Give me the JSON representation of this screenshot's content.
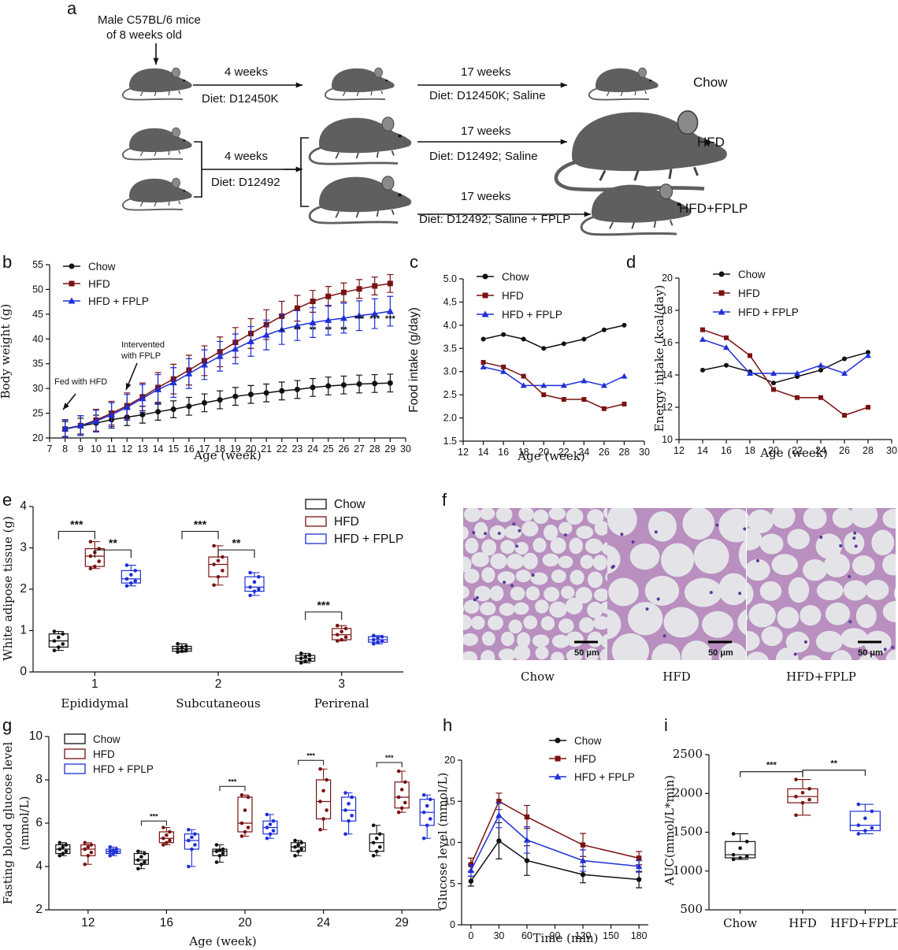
{
  "panels": {
    "a": "a",
    "b": "b",
    "c": "c",
    "d": "d",
    "e": "e",
    "f": "f",
    "g": "g",
    "h": "h",
    "i": "i"
  },
  "diagram": {
    "start": "Male C57BL/6 mice",
    "start2": "of 8 weeks old",
    "w4": "4 weeks",
    "diet_chow": "Diet: D12450K",
    "diet_hfd": "Diet: D12492",
    "w17": "17 weeks",
    "d_chow": "Diet: D12450K; Saline",
    "d_hfd": "Diet: D12492; Saline",
    "d_fplp": "Diet: D12492; Saline + FPLP",
    "g_chow": "Chow",
    "g_hfd": "HFD",
    "g_fplp": "HFD+FPLP"
  },
  "colors": {
    "chow": "#111111",
    "hfd": "#7a1212",
    "fplp": "#1f2fd6",
    "mouse": "#5f5f5f"
  },
  "chart_data": [
    {
      "id": "b",
      "type": "line",
      "ylabel": "Body weight (g)",
      "xlabel": "Age (week)",
      "xlim": [
        7,
        30
      ],
      "ylim": [
        20,
        55
      ],
      "xticks": [
        7,
        8,
        9,
        10,
        11,
        12,
        13,
        14,
        15,
        16,
        17,
        18,
        19,
        20,
        21,
        22,
        23,
        24,
        25,
        26,
        27,
        28,
        29,
        30
      ],
      "yticks": [
        20,
        25,
        30,
        35,
        40,
        45,
        50,
        55
      ],
      "x": [
        8,
        9,
        10,
        11,
        12,
        13,
        14,
        15,
        16,
        17,
        18,
        19,
        20,
        21,
        22,
        23,
        24,
        25,
        26,
        27,
        28,
        29
      ],
      "series": [
        {
          "name": "Chow",
          "color": "#111111",
          "marker": "circle",
          "values": [
            21.8,
            22.4,
            23.0,
            23.7,
            24.2,
            24.7,
            25.3,
            25.8,
            26.4,
            27.1,
            27.7,
            28.4,
            28.8,
            29.1,
            29.5,
            29.8,
            30.2,
            30.5,
            30.7,
            30.9,
            31.0,
            31.1
          ],
          "err": [
            1.5,
            1.6,
            1.6,
            1.7,
            1.7,
            1.7,
            1.7,
            1.7,
            1.8,
            1.8,
            1.8,
            1.8,
            1.8,
            1.8,
            1.8,
            1.8,
            1.8,
            1.8,
            1.8,
            1.8,
            1.8,
            1.8
          ]
        },
        {
          "name": "HFD",
          "color": "#7a1212",
          "marker": "square",
          "values": [
            21.8,
            22.5,
            23.6,
            25.0,
            26.5,
            28.3,
            30.2,
            31.9,
            33.7,
            35.6,
            37.4,
            39.3,
            41.1,
            42.9,
            44.6,
            46.2,
            47.6,
            48.6,
            49.4,
            50.1,
            50.7,
            51.2
          ],
          "err": [
            1.8,
            2.0,
            2.2,
            2.4,
            2.6,
            2.8,
            3.0,
            3.0,
            3.0,
            3.0,
            3.0,
            3.0,
            3.0,
            3.0,
            3.0,
            2.6,
            2.2,
            2.0,
            1.9,
            1.9,
            1.8,
            1.8
          ]
        },
        {
          "name": "HFD + FPLP",
          "color": "#1f2fd6",
          "marker": "triangle",
          "values": [
            21.9,
            22.5,
            23.4,
            24.7,
            26.2,
            28.0,
            29.8,
            31.2,
            33.0,
            34.8,
            36.5,
            38.0,
            39.5,
            40.8,
            41.9,
            42.7,
            43.3,
            43.8,
            44.2,
            44.7,
            45.1,
            45.6
          ],
          "err": [
            1.8,
            2.0,
            2.2,
            2.4,
            2.6,
            2.8,
            3.0,
            3.0,
            3.0,
            3.0,
            3.0,
            3.0,
            3.0,
            3.0,
            3.0,
            3.0,
            3.0,
            3.0,
            3.0,
            3.0,
            3.0,
            3.0
          ]
        }
      ],
      "annotations": [
        {
          "text": "Fed with HFD",
          "x": 8
        },
        {
          "text": "Intervented",
          "text2": "with FPLP",
          "x": 12
        }
      ],
      "sig": [
        {
          "x": 22,
          "text": "*"
        },
        {
          "x": 23,
          "text": "**"
        },
        {
          "x": 24,
          "text": "**"
        },
        {
          "x": 25,
          "text": "**"
        },
        {
          "x": 26,
          "text": "**"
        },
        {
          "x": 27,
          "text": "***"
        },
        {
          "x": 28,
          "text": "***"
        },
        {
          "x": 29,
          "text": "***"
        }
      ]
    },
    {
      "id": "c",
      "type": "line",
      "ylabel": "Food intake (g/day)",
      "xlabel": "Age (week)",
      "xlim": [
        12,
        30
      ],
      "ylim": [
        1.5,
        5.0
      ],
      "xticks": [
        12,
        14,
        16,
        18,
        20,
        22,
        24,
        26,
        28,
        30
      ],
      "yticks": [
        1.5,
        2.0,
        2.5,
        3.0,
        3.5,
        4.0,
        4.5,
        5.0
      ],
      "x": [
        14,
        16,
        18,
        20,
        22,
        24,
        26,
        28
      ],
      "series": [
        {
          "name": "Chow",
          "color": "#111111",
          "marker": "circle",
          "values": [
            3.7,
            3.8,
            3.7,
            3.5,
            3.6,
            3.7,
            3.9,
            4.0
          ]
        },
        {
          "name": "HFD",
          "color": "#7a1212",
          "marker": "square",
          "values": [
            3.2,
            3.1,
            2.9,
            2.5,
            2.4,
            2.4,
            2.2,
            2.3
          ]
        },
        {
          "name": "HFD + FPLP",
          "color": "#1f2fd6",
          "marker": "triangle",
          "values": [
            3.1,
            3.0,
            2.7,
            2.7,
            2.7,
            2.8,
            2.7,
            2.9
          ]
        }
      ]
    },
    {
      "id": "d",
      "type": "line",
      "ylabel": "Energy intake (kcal/day)",
      "xlabel": "Age (week)",
      "xlim": [
        12,
        30
      ],
      "ylim": [
        10,
        20
      ],
      "xticks": [
        12,
        14,
        16,
        18,
        20,
        22,
        24,
        26,
        28,
        30
      ],
      "yticks": [
        10,
        12,
        14,
        16,
        18,
        20
      ],
      "x": [
        14,
        16,
        18,
        20,
        22,
        24,
        26,
        28
      ],
      "series": [
        {
          "name": "Chow",
          "color": "#111111",
          "marker": "circle",
          "values": [
            14.3,
            14.6,
            14.2,
            13.5,
            13.9,
            14.3,
            15.0,
            15.4
          ]
        },
        {
          "name": "HFD",
          "color": "#7a1212",
          "marker": "square",
          "values": [
            16.8,
            16.3,
            15.2,
            13.1,
            12.6,
            12.6,
            11.5,
            12.0
          ]
        },
        {
          "name": "HFD + FPLP",
          "color": "#1f2fd6",
          "marker": "triangle",
          "values": [
            16.2,
            15.7,
            14.1,
            14.1,
            14.1,
            14.6,
            14.1,
            15.2
          ]
        }
      ]
    },
    {
      "id": "e",
      "type": "box",
      "ylabel": "White adipose tissue (g)",
      "ylim": [
        0,
        4
      ],
      "yticks": [
        0,
        1,
        2,
        3,
        4
      ],
      "categories": [
        "Epididymal",
        "Subcutaneous",
        "Perirenal"
      ],
      "xticks": [
        "1",
        "2",
        "3"
      ],
      "series": [
        {
          "name": "Chow",
          "color": "#111111",
          "boxes": [
            [
              0.52,
              0.6,
              0.75,
              0.92,
              0.98
            ],
            [
              0.48,
              0.5,
              0.56,
              0.62,
              0.68
            ],
            [
              0.22,
              0.26,
              0.33,
              0.4,
              0.45
            ]
          ]
        },
        {
          "name": "HFD",
          "color": "#7a1212",
          "boxes": [
            [
              2.5,
              2.55,
              2.8,
              2.98,
              3.15
            ],
            [
              2.1,
              2.3,
              2.6,
              2.78,
              3.05
            ],
            [
              0.75,
              0.78,
              0.9,
              1.05,
              1.12
            ]
          ]
        },
        {
          "name": "HFD + FPLP",
          "color": "#1f2fd6",
          "boxes": [
            [
              2.08,
              2.15,
              2.25,
              2.45,
              2.58
            ],
            [
              1.85,
              1.95,
              2.05,
              2.3,
              2.4
            ],
            [
              0.68,
              0.72,
              0.78,
              0.85,
              0.88
            ]
          ]
        }
      ],
      "sig": [
        {
          "group": 0,
          "from": 0,
          "to": 1,
          "y": 3.4,
          "text": "***"
        },
        {
          "group": 0,
          "from": 1,
          "to": 2,
          "y": 2.95,
          "text": "**"
        },
        {
          "group": 1,
          "from": 0,
          "to": 1,
          "y": 3.4,
          "text": "***"
        },
        {
          "group": 1,
          "from": 1,
          "to": 2,
          "y": 2.95,
          "text": "**"
        },
        {
          "group": 2,
          "from": 0,
          "to": 1,
          "y": 1.45,
          "text": "***"
        }
      ]
    },
    {
      "id": "g",
      "type": "box",
      "ylabel": "Fasting blood glucose level",
      "ylabel2": "(mmol/L)",
      "xlabel": "Age (week)",
      "ylim": [
        2,
        10
      ],
      "yticks": [
        2,
        4,
        6,
        8,
        10
      ],
      "categories": [
        "12",
        "16",
        "20",
        "24",
        "29"
      ],
      "series": [
        {
          "name": "Chow",
          "color": "#111111",
          "boxes": [
            [
              4.5,
              4.6,
              4.8,
              5.0,
              5.1
            ],
            [
              3.9,
              4.1,
              4.3,
              4.6,
              4.7
            ],
            [
              4.2,
              4.5,
              4.7,
              4.8,
              5.0
            ],
            [
              4.5,
              4.7,
              4.9,
              5.1,
              5.2
            ],
            [
              4.5,
              4.7,
              5.1,
              5.5,
              5.9
            ]
          ]
        },
        {
          "name": "HFD",
          "color": "#7a1212",
          "boxes": [
            [
              4.1,
              4.5,
              4.8,
              5.0,
              5.1
            ],
            [
              5.0,
              5.1,
              5.3,
              5.6,
              5.8
            ],
            [
              5.4,
              5.6,
              6.0,
              7.2,
              7.3
            ],
            [
              5.7,
              6.2,
              7.0,
              8.0,
              8.5
            ],
            [
              6.5,
              6.7,
              7.2,
              7.9,
              8.4
            ]
          ]
        },
        {
          "name": "HFD + FPLP",
          "color": "#1f2fd6",
          "boxes": [
            [
              4.5,
              4.6,
              4.7,
              4.8,
              4.9
            ],
            [
              4.0,
              4.8,
              5.2,
              5.5,
              5.7
            ],
            [
              5.3,
              5.5,
              5.8,
              6.1,
              6.4
            ],
            [
              5.5,
              6.1,
              6.6,
              7.2,
              7.4
            ],
            [
              5.3,
              5.9,
              6.5,
              7.1,
              7.3
            ]
          ]
        }
      ],
      "sig": [
        {
          "group": 1,
          "text": "***",
          "y": 6.1
        },
        {
          "group": 2,
          "text": "***",
          "y": 7.7
        },
        {
          "group": 3,
          "text": "***",
          "y": 8.9
        },
        {
          "group": 4,
          "text": "***",
          "y": 8.8
        }
      ]
    },
    {
      "id": "h",
      "type": "line",
      "ylabel": "Glucose level (mmol/L)",
      "xlabel": "Time (min)",
      "xlim": [
        -10,
        190
      ],
      "ylim": [
        0,
        20
      ],
      "xticks": [
        0,
        30,
        60,
        90,
        120,
        150,
        180
      ],
      "yticks": [
        0,
        5,
        10,
        15,
        20
      ],
      "x": [
        0,
        30,
        60,
        120,
        180
      ],
      "series": [
        {
          "name": "Chow",
          "color": "#111111",
          "marker": "circle",
          "values": [
            5.3,
            10.2,
            7.8,
            6.1,
            5.5
          ],
          "err": [
            0.6,
            2.2,
            1.8,
            1.0,
            1.0
          ]
        },
        {
          "name": "HFD",
          "color": "#7a1212",
          "marker": "square",
          "values": [
            7.3,
            15.0,
            13.1,
            9.7,
            8.1
          ],
          "err": [
            0.8,
            1.0,
            1.4,
            1.4,
            0.8
          ]
        },
        {
          "name": "HFD + FPLP",
          "color": "#1f2fd6",
          "marker": "triangle",
          "values": [
            6.6,
            13.3,
            10.3,
            7.8,
            7.1
          ],
          "err": [
            0.7,
            1.5,
            1.6,
            1.3,
            0.7
          ]
        }
      ]
    },
    {
      "id": "i",
      "type": "box",
      "ylabel": "AUC(mmol/L*min)",
      "ylim": [
        500,
        2500
      ],
      "yticks": [
        500,
        1000,
        1500,
        2000,
        2500
      ],
      "categories": [
        "Chow",
        "HFD",
        "HFD+FPLP"
      ],
      "series": [
        {
          "name": "Chow",
          "color": "#111111",
          "boxes": [
            [
              1150,
              1170,
              1210,
              1380,
              1480
            ]
          ]
        },
        {
          "name": "HFD",
          "color": "#7a1212",
          "boxes": [
            [
              1720,
              1880,
              1960,
              2060,
              2180
            ]
          ]
        },
        {
          "name": "HFD+FPLP",
          "color": "#1f2fd6",
          "boxes": [
            [
              1480,
              1520,
              1590,
              1770,
              1860
            ]
          ]
        }
      ],
      "sig": [
        {
          "from": 0,
          "to": 1,
          "y": 2280,
          "text": "***"
        },
        {
          "from": 1,
          "to": 2,
          "y": 2300,
          "text": "**"
        }
      ]
    }
  ],
  "histology": {
    "labels": [
      "Chow",
      "HFD",
      "HFD+FPLP"
    ],
    "scale": "50 μm"
  }
}
